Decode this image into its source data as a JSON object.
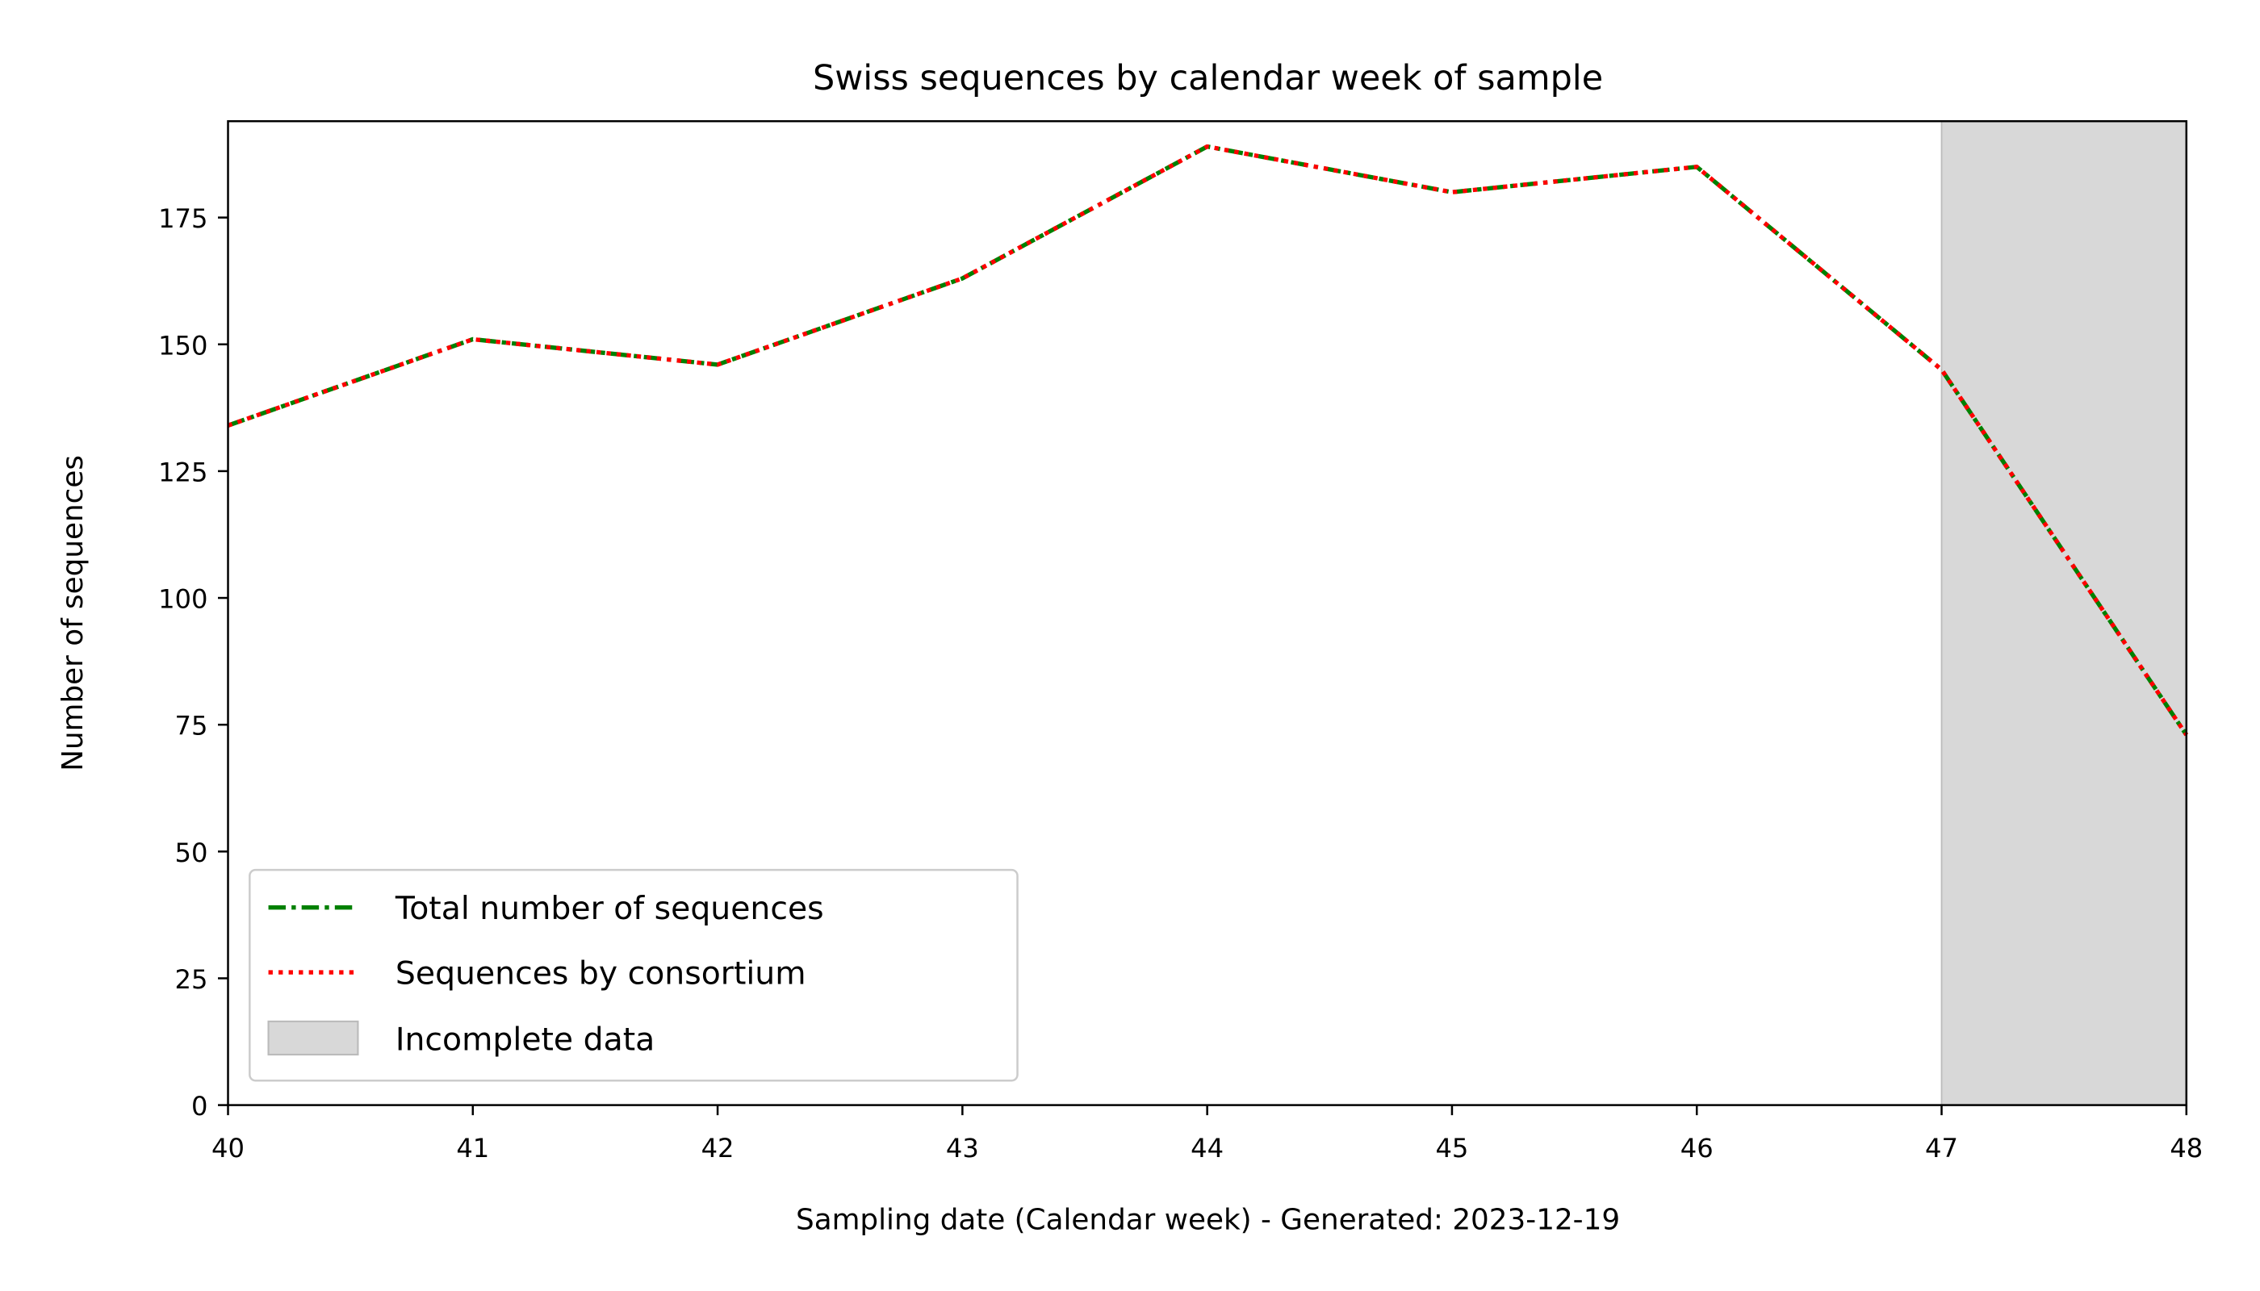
{
  "chart_data": {
    "type": "line",
    "title": "Swiss sequences by calendar week of sample",
    "xlabel": "Sampling date (Calendar week) - Generated: 2023-12-19",
    "ylabel": "Number of sequences",
    "x": [
      40,
      41,
      42,
      43,
      44,
      45,
      46,
      47,
      48
    ],
    "xlim": [
      40,
      48
    ],
    "ylim": [
      0,
      194
    ],
    "xticks": [
      40,
      41,
      42,
      43,
      44,
      45,
      46,
      47,
      48
    ],
    "yticks": [
      0,
      25,
      50,
      75,
      100,
      125,
      150,
      175
    ],
    "grid": false,
    "legend_position": "lower-left",
    "series": [
      {
        "name": "Total number of sequences",
        "color": "#008000",
        "linestyle": "dash-dot",
        "values": [
          134,
          151,
          146,
          163,
          189,
          180,
          185,
          145,
          73
        ]
      },
      {
        "name": "Sequences by consortium",
        "color": "#ff0000",
        "linestyle": "dotted",
        "values": [
          134,
          151,
          146,
          163,
          189,
          180,
          185,
          145,
          73
        ]
      }
    ],
    "shaded_regions": [
      {
        "name": "Incomplete data",
        "x_start": 47,
        "x_end": 48,
        "color": "#d8d8d8"
      }
    ]
  }
}
